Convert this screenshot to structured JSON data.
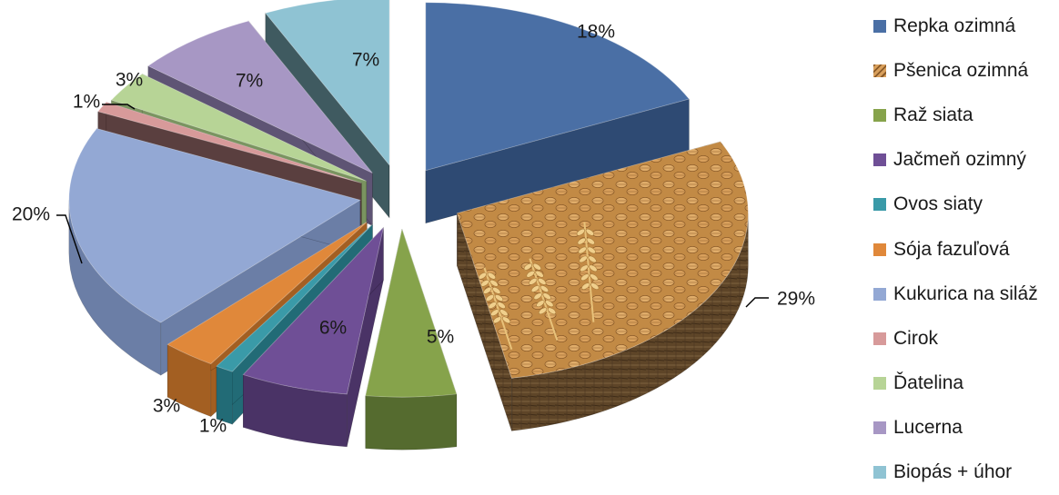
{
  "chart_data": {
    "type": "pie",
    "title": "",
    "legend_position": "right",
    "series": [
      {
        "name": "Repka ozimná",
        "value": 18,
        "label": "18%",
        "color": "#4a6fa5",
        "side_color": "#2e4a73"
      },
      {
        "name": "Pšenica ozimná",
        "value": 29,
        "label": "29%",
        "color": "#c9944a",
        "side_color": "#5a4326"
      },
      {
        "name": "Raž siata",
        "value": 5,
        "label": "5%",
        "color": "#86a34b",
        "side_color": "#556b2f"
      },
      {
        "name": "Jačmeň ozimný",
        "value": 6,
        "label": "6%",
        "color": "#6f4f96",
        "side_color": "#4a3366"
      },
      {
        "name": "Ovos siaty",
        "value": 1,
        "label": "1%",
        "color": "#3a9aa8",
        "side_color": "#226b76"
      },
      {
        "name": "Sója fazuľová",
        "value": 3,
        "label": "3%",
        "color": "#e0883a",
        "side_color": "#a35f22"
      },
      {
        "name": "Kukurica na siláž",
        "value": 20,
        "label": "20%",
        "color": "#93a8d4",
        "side_color": "#6b7ea6"
      },
      {
        "name": "Cirok",
        "value": 1,
        "label": "1%",
        "color": "#d79a9a",
        "side_color": "#5a3f3f"
      },
      {
        "name": "Ďatelina",
        "value": 3,
        "label": "3%",
        "color": "#b7d496",
        "side_color": "#7a9460"
      },
      {
        "name": "Lucerna",
        "value": 7,
        "label": "7%",
        "color": "#a797c4",
        "side_color": "#5e5474"
      },
      {
        "name": "Biopás + úhor",
        "value": 7,
        "label": "7%",
        "color": "#8fc3d3",
        "side_color": "#3f5a60"
      }
    ]
  }
}
